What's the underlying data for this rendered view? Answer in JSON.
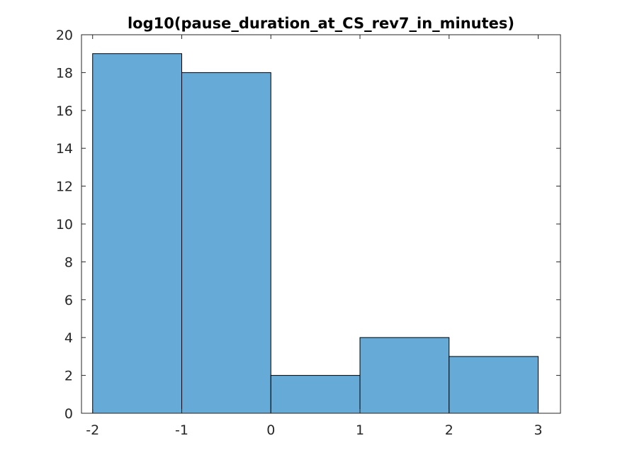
{
  "chart_data": {
    "type": "bar",
    "subtype": "histogram",
    "title": "log10(pause_duration_at_CS_rev7_in_minutes)",
    "xlabel": "",
    "ylabel": "",
    "bin_edges": [
      -2,
      -1,
      0,
      1,
      2,
      3
    ],
    "values": [
      19,
      18,
      2,
      4,
      3
    ],
    "xlim": [
      -2.125,
      3.25
    ],
    "ylim": [
      0,
      20
    ],
    "xticks": [
      "-2",
      "-1",
      "0",
      "1",
      "2",
      "3"
    ],
    "yticks": [
      "0",
      "2",
      "4",
      "6",
      "8",
      "10",
      "12",
      "14",
      "16",
      "18",
      "20"
    ],
    "grid": false,
    "legend": "none",
    "bar_color": "#66aad7",
    "edge_color": "#000000"
  }
}
